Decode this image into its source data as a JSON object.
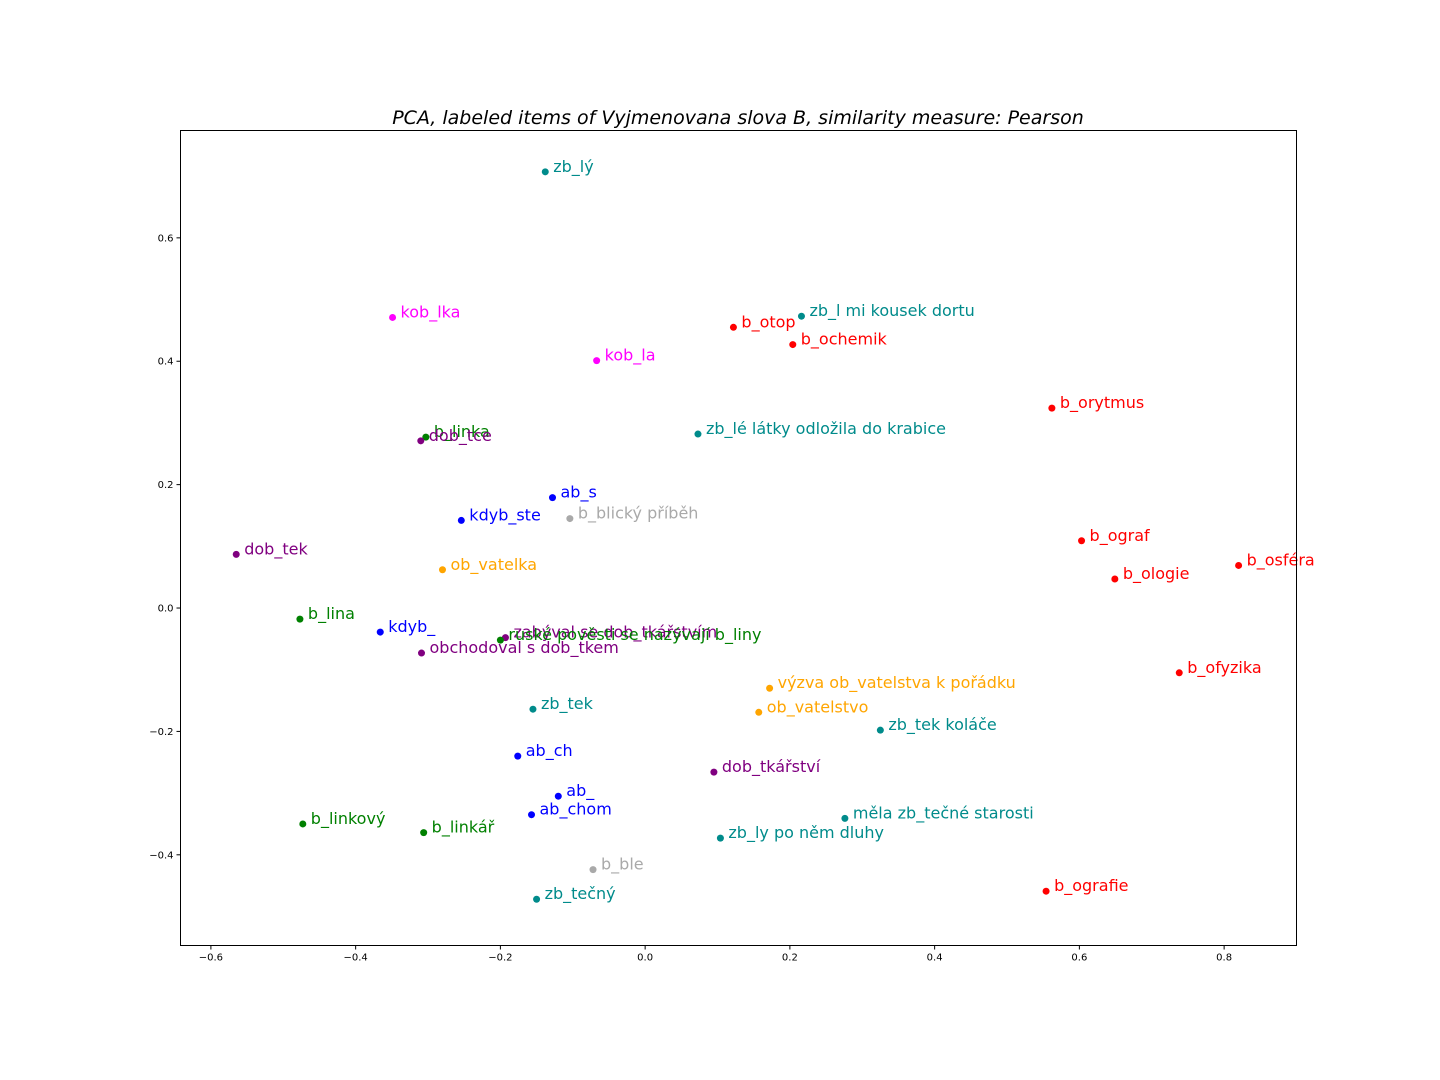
{
  "chart_data": {
    "type": "scatter",
    "title": "PCA, labeled items of Vyjmenovana slova B, similarity measure: Pearson",
    "xlabel": "",
    "ylabel": "",
    "xlim": [
      -0.642,
      0.9
    ],
    "ylim": [
      -0.547,
      0.774
    ],
    "x_ticks": [
      -0.6,
      -0.4,
      -0.2,
      0.0,
      0.2,
      0.4,
      0.6,
      0.8
    ],
    "x_tick_labels": [
      "−0.6",
      "−0.4",
      "−0.2",
      "0.0",
      "0.2",
      "0.4",
      "0.6",
      "0.8"
    ],
    "y_ticks": [
      -0.4,
      -0.2,
      0.0,
      0.2,
      0.4,
      0.6
    ],
    "y_tick_labels": [
      "−0.4",
      "−0.2",
      "0.0",
      "0.2",
      "0.4",
      "0.6"
    ],
    "grid": false,
    "legend": "none",
    "colors": {
      "teal": "#008b8b",
      "red": "#ff0000",
      "magenta": "#ff00ff",
      "green": "#008000",
      "purple": "#800080",
      "blue": "#0000ff",
      "gray": "#a9a9a9",
      "orange": "#ffa500"
    },
    "points": [
      {
        "label": "zb_lý",
        "x": -0.138,
        "y": 0.707,
        "color": "teal"
      },
      {
        "label": "kob_lka",
        "x": -0.349,
        "y": 0.471,
        "color": "magenta"
      },
      {
        "label": "kob_la",
        "x": -0.067,
        "y": 0.401,
        "color": "magenta"
      },
      {
        "label": "b_otop",
        "x": 0.122,
        "y": 0.455,
        "color": "red"
      },
      {
        "label": "zb_l mi kousek dortu",
        "x": 0.216,
        "y": 0.473,
        "color": "teal"
      },
      {
        "label": "b_ochemik",
        "x": 0.204,
        "y": 0.427,
        "color": "red"
      },
      {
        "label": "b_orytmus",
        "x": 0.562,
        "y": 0.324,
        "color": "red"
      },
      {
        "label": "zb_lé látky odložila do krabice",
        "x": 0.073,
        "y": 0.282,
        "color": "teal"
      },
      {
        "label": "b_linka",
        "x": -0.303,
        "y": 0.277,
        "color": "green"
      },
      {
        "label": "dob_tce",
        "x": -0.31,
        "y": 0.271,
        "color": "purple"
      },
      {
        "label": "ab_s",
        "x": -0.128,
        "y": 0.179,
        "color": "blue"
      },
      {
        "label": "kdyb_ste",
        "x": -0.254,
        "y": 0.142,
        "color": "blue"
      },
      {
        "label": "b_blický příběh",
        "x": -0.104,
        "y": 0.145,
        "color": "gray"
      },
      {
        "label": "b_ograf",
        "x": 0.603,
        "y": 0.109,
        "color": "red"
      },
      {
        "label": "dob_tek",
        "x": -0.565,
        "y": 0.087,
        "color": "purple"
      },
      {
        "label": "ob_vatelka",
        "x": -0.28,
        "y": 0.062,
        "color": "orange"
      },
      {
        "label": "b_osféra",
        "x": 0.82,
        "y": 0.069,
        "color": "red"
      },
      {
        "label": "b_ologie",
        "x": 0.649,
        "y": 0.047,
        "color": "red"
      },
      {
        "label": "b_lina",
        "x": -0.477,
        "y": -0.018,
        "color": "green"
      },
      {
        "label": "kdyb_",
        "x": -0.366,
        "y": -0.039,
        "color": "blue"
      },
      {
        "label": "zabýval se dob_tkářstvím",
        "x": -0.193,
        "y": -0.048,
        "color": "purple"
      },
      {
        "label": "ruské pověsti se nazývají b_liny",
        "x": -0.2,
        "y": -0.052,
        "color": "green"
      },
      {
        "label": "obchodoval s dob_tkem",
        "x": -0.309,
        "y": -0.073,
        "color": "purple"
      },
      {
        "label": "b_ofyzika",
        "x": 0.738,
        "y": -0.105,
        "color": "red"
      },
      {
        "label": "výzva ob_vatelstva k pořádku",
        "x": 0.172,
        "y": -0.13,
        "color": "orange"
      },
      {
        "label": "zb_tek",
        "x": -0.155,
        "y": -0.164,
        "color": "teal"
      },
      {
        "label": "ob_vatelstvo",
        "x": 0.157,
        "y": -0.169,
        "color": "orange"
      },
      {
        "label": "zb_tek koláče",
        "x": 0.325,
        "y": -0.198,
        "color": "teal"
      },
      {
        "label": "ab_ch",
        "x": -0.176,
        "y": -0.24,
        "color": "blue"
      },
      {
        "label": "dob_tkářství",
        "x": 0.095,
        "y": -0.266,
        "color": "purple"
      },
      {
        "label": "ab_",
        "x": -0.12,
        "y": -0.305,
        "color": "blue"
      },
      {
        "label": "ab_chom",
        "x": -0.157,
        "y": -0.335,
        "color": "blue"
      },
      {
        "label": "měla zb_tečné starosti",
        "x": 0.276,
        "y": -0.341,
        "color": "teal"
      },
      {
        "label": "b_linkový",
        "x": -0.473,
        "y": -0.35,
        "color": "green"
      },
      {
        "label": "b_linkář",
        "x": -0.306,
        "y": -0.364,
        "color": "green"
      },
      {
        "label": "zb_ly po něm dluhy",
        "x": 0.104,
        "y": -0.373,
        "color": "teal"
      },
      {
        "label": "b_ble",
        "x": -0.072,
        "y": -0.424,
        "color": "gray"
      },
      {
        "label": "b_ografie",
        "x": 0.554,
        "y": -0.459,
        "color": "red"
      },
      {
        "label": "zb_tečný",
        "x": -0.15,
        "y": -0.472,
        "color": "teal"
      }
    ]
  }
}
